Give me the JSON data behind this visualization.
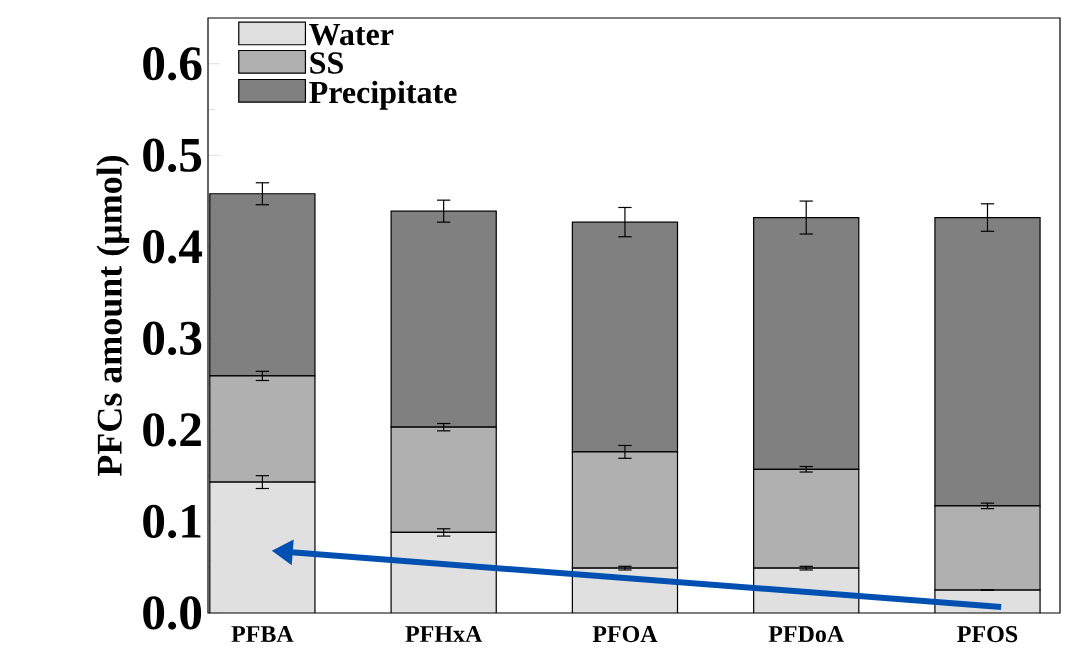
{
  "chart_data": {
    "type": "bar",
    "stacked": true,
    "ylabel": "PFCs amount (μmol)",
    "categories": [
      "PFBA",
      "PFHxA",
      "PFOA",
      "PFDoA",
      "PFOS"
    ],
    "series": [
      {
        "name": "Water",
        "color": "#e0e0e0",
        "values": [
          0.143,
          0.088,
          0.049,
          0.049,
          0.025
        ],
        "errors": [
          0.007,
          0.004,
          0.002,
          0.002,
          null
        ]
      },
      {
        "name": "SS",
        "color": "#b0b0b0",
        "values": [
          0.116,
          0.115,
          0.127,
          0.108,
          0.092
        ],
        "errors": [
          0.005,
          0.004,
          0.007,
          0.003,
          0.003
        ]
      },
      {
        "name": "Precipitate",
        "color": "#808080",
        "values": [
          0.199,
          0.236,
          0.251,
          0.275,
          0.315
        ],
        "errors": [
          0.012,
          0.012,
          0.016,
          0.018,
          0.015
        ]
      }
    ],
    "ylim": [
      0,
      0.65
    ],
    "yticks": [
      {
        "value": 0,
        "label": "0.0"
      },
      {
        "value": 0.1,
        "label": "0.1"
      },
      {
        "value": 0.2,
        "label": "0.2"
      },
      {
        "value": 0.3,
        "label": "0.3"
      },
      {
        "value": 0.4,
        "label": "0.4"
      },
      {
        "value": 0.5,
        "label": "0.5"
      },
      {
        "value": 0.6,
        "label": "0.6"
      }
    ],
    "legend": "top left",
    "grid": false
  }
}
